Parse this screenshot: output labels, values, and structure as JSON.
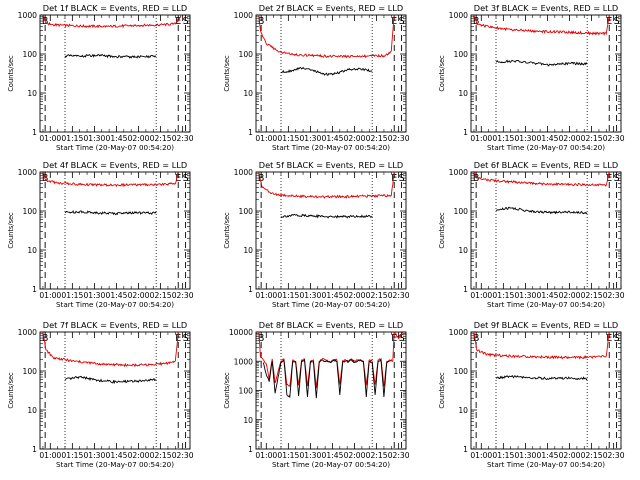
{
  "figure": {
    "xlabel": "Start Time (20-May-07 00:54:20)",
    "ylabel": "Counts/sec",
    "x_ticks": [
      "01:00",
      "01:15",
      "01:30",
      "01:45",
      "02:00",
      "02:15",
      "02:30"
    ],
    "markers": {
      "begin": "B",
      "end": "E",
      "saa": "S"
    },
    "colors": {
      "events": "#000000",
      "lld": "#e00000",
      "frame": "#000000",
      "background": "#ffffff"
    }
  },
  "chart_data": [
    {
      "type": "line",
      "title": "Det 1f BLACK = Events, RED = LLD",
      "x_unit": "minutes",
      "x_range": [
        53,
        155
      ],
      "ylim": [
        1,
        1000
      ],
      "yscale": "log",
      "y_ticks": [
        "1",
        "10",
        "100",
        "1000"
      ],
      "dashed_lines_x": [
        56.5,
        147,
        152
      ],
      "dotted_lines_x": [
        70,
        132
      ],
      "events": {
        "x": [
          70,
          80,
          92,
          105,
          118,
          126,
          132
        ],
        "y": [
          90,
          88,
          92,
          85,
          84,
          86,
          88
        ]
      },
      "lld": {
        "x": [
          55,
          57,
          62,
          80,
          100,
          120,
          135,
          145,
          147,
          149
        ],
        "y": [
          1000,
          620,
          560,
          520,
          510,
          540,
          560,
          590,
          700,
          1000
        ]
      }
    },
    {
      "type": "line",
      "title": "Det 2f BLACK = Events, RED = LLD",
      "x_unit": "minutes",
      "x_range": [
        53,
        155
      ],
      "ylim": [
        1,
        1000
      ],
      "yscale": "log",
      "y_ticks": [
        "1",
        "10",
        "100",
        "1000"
      ],
      "dashed_lines_x": [
        56.5,
        147,
        152
      ],
      "dotted_lines_x": [
        70,
        132
      ],
      "events": {
        "x": [
          70,
          78,
          85,
          92,
          100,
          108,
          116,
          124,
          132
        ],
        "y": [
          34,
          38,
          45,
          38,
          30,
          32,
          40,
          42,
          36
        ]
      },
      "lld": {
        "x": [
          55,
          56,
          60,
          70,
          80,
          95,
          110,
          125,
          140,
          143,
          145,
          147
        ],
        "y": [
          1000,
          400,
          180,
          110,
          95,
          90,
          85,
          88,
          90,
          100,
          120,
          1000
        ]
      }
    },
    {
      "type": "line",
      "title": "Det 3f BLACK = Events, RED = LLD",
      "x_unit": "minutes",
      "x_range": [
        53,
        155
      ],
      "ylim": [
        1,
        1000
      ],
      "yscale": "log",
      "y_ticks": [
        "1",
        "10",
        "100",
        "1000"
      ],
      "dashed_lines_x": [
        56.5,
        147,
        152
      ],
      "dotted_lines_x": [
        70,
        132
      ],
      "events": {
        "x": [
          70,
          82,
          95,
          108,
          120,
          132
        ],
        "y": [
          62,
          66,
          58,
          52,
          58,
          55
        ]
      },
      "lld": {
        "x": [
          55,
          57,
          65,
          80,
          100,
          120,
          135,
          145,
          147
        ],
        "y": [
          1000,
          580,
          500,
          420,
          380,
          360,
          340,
          330,
          1000
        ]
      }
    },
    {
      "type": "line",
      "title": "Det 4f BLACK = Events, RED = LLD",
      "x_unit": "minutes",
      "x_range": [
        53,
        155
      ],
      "ylim": [
        1,
        1000
      ],
      "yscale": "log",
      "y_ticks": [
        "1",
        "10",
        "100",
        "1000"
      ],
      "dashed_lines_x": [
        56.5,
        147,
        152
      ],
      "dotted_lines_x": [
        70,
        132
      ],
      "events": {
        "x": [
          70,
          80,
          92,
          105,
          118,
          132
        ],
        "y": [
          92,
          96,
          90,
          86,
          90,
          88
        ]
      },
      "lld": {
        "x": [
          55,
          57,
          65,
          80,
          100,
          120,
          135,
          145,
          147
        ],
        "y": [
          1000,
          620,
          520,
          480,
          460,
          470,
          480,
          500,
          1000
        ]
      }
    },
    {
      "type": "line",
      "title": "Det 5f BLACK = Events, RED = LLD",
      "x_unit": "minutes",
      "x_range": [
        53,
        155
      ],
      "ylim": [
        1,
        1000
      ],
      "yscale": "log",
      "y_ticks": [
        "1",
        "10",
        "100",
        "1000"
      ],
      "dashed_lines_x": [
        56.5,
        147,
        152
      ],
      "dotted_lines_x": [
        70,
        132
      ],
      "events": {
        "x": [
          70,
          80,
          92,
          105,
          118,
          132
        ],
        "y": [
          72,
          78,
          75,
          70,
          72,
          74
        ]
      },
      "lld": {
        "x": [
          55,
          57,
          65,
          80,
          100,
          120,
          135,
          145,
          147
        ],
        "y": [
          1000,
          420,
          270,
          240,
          230,
          235,
          245,
          250,
          1000
        ]
      }
    },
    {
      "type": "line",
      "title": "Det 6f BLACK = Events, RED = LLD",
      "x_unit": "minutes",
      "x_range": [
        53,
        155
      ],
      "ylim": [
        1,
        1000
      ],
      "yscale": "log",
      "y_ticks": [
        "1",
        "10",
        "100",
        "1000"
      ],
      "dashed_lines_x": [
        56.5,
        147,
        152
      ],
      "dotted_lines_x": [
        70,
        132
      ],
      "events": {
        "x": [
          70,
          80,
          92,
          105,
          118,
          132
        ],
        "y": [
          105,
          120,
          100,
          92,
          95,
          90
        ]
      },
      "lld": {
        "x": [
          55,
          57,
          65,
          80,
          100,
          120,
          135,
          145,
          147
        ],
        "y": [
          1000,
          700,
          620,
          560,
          500,
          480,
          470,
          460,
          1000
        ]
      }
    },
    {
      "type": "line",
      "title": "Det 7f BLACK = Events, RED = LLD",
      "x_unit": "minutes",
      "x_range": [
        53,
        155
      ],
      "ylim": [
        1,
        1000
      ],
      "yscale": "log",
      "y_ticks": [
        "1",
        "10",
        "100",
        "1000"
      ],
      "dashed_lines_x": [
        56.5,
        147,
        152
      ],
      "dotted_lines_x": [
        70,
        132
      ],
      "events": {
        "x": [
          70,
          80,
          92,
          105,
          118,
          132
        ],
        "y": [
          60,
          70,
          58,
          52,
          55,
          60
        ]
      },
      "lld": {
        "x": [
          55,
          57,
          62,
          75,
          95,
          115,
          130,
          140,
          145,
          147
        ],
        "y": [
          1000,
          350,
          220,
          180,
          150,
          140,
          145,
          160,
          180,
          1000
        ]
      }
    },
    {
      "type": "line",
      "title": "Det 8f BLACK = Events, RED = LLD",
      "x_unit": "minutes",
      "x_range": [
        53,
        155
      ],
      "ylim": [
        1,
        10000
      ],
      "yscale": "log",
      "y_ticks": [
        "1",
        "10",
        "100",
        "1000",
        "10000"
      ],
      "dashed_lines_x": [
        56.5,
        147,
        152
      ],
      "dotted_lines_x": [
        70,
        132
      ],
      "events": {
        "x": [
          58,
          60,
          62,
          64,
          66,
          70,
          72,
          74,
          76,
          78,
          80,
          82,
          84,
          86,
          88,
          90,
          92,
          94,
          96,
          98,
          100,
          102,
          104,
          106,
          108,
          110,
          112,
          114,
          116,
          118,
          120,
          122,
          124,
          126,
          128,
          130,
          132,
          134,
          136,
          138,
          140,
          142,
          144
        ],
        "y": [
          900,
          350,
          200,
          1000,
          80,
          950,
          1100,
          70,
          60,
          1000,
          900,
          65,
          1000,
          1100,
          60,
          950,
          1000,
          55,
          900,
          1100,
          1000,
          950,
          900,
          1050,
          1000,
          70,
          980,
          1000,
          950,
          1100,
          900,
          1000,
          1050,
          950,
          60,
          1000,
          900,
          70,
          1000,
          1100,
          60,
          950,
          1000
        ]
      },
      "lld": {
        "x": [
          55,
          56,
          58,
          60,
          62,
          64,
          66,
          70,
          72,
          74,
          76,
          78,
          80,
          82,
          84,
          86,
          88,
          90,
          92,
          94,
          96,
          98,
          100,
          102,
          104,
          106,
          108,
          110,
          112,
          114,
          116,
          118,
          120,
          122,
          124,
          126,
          128,
          130,
          132,
          134,
          136,
          138,
          140,
          142,
          144,
          146,
          147,
          150,
          153
        ],
        "y": [
          10000,
          1400,
          1100,
          800,
          250,
          1200,
          180,
          1000,
          1200,
          160,
          140,
          1100,
          1000,
          150,
          1100,
          1200,
          140,
          1000,
          1100,
          120,
          1000,
          1200,
          1100,
          1000,
          950,
          1150,
          1100,
          160,
          1050,
          1100,
          1000,
          1200,
          1000,
          1100,
          1150,
          1000,
          150,
          1100,
          1000,
          160,
          1100,
          1200,
          140,
          1000,
          1100,
          1000,
          10000,
          6000,
          10000
        ]
      }
    },
    {
      "type": "line",
      "title": "Det 9f BLACK = Events, RED = LLD",
      "x_unit": "minutes",
      "x_range": [
        53,
        155
      ],
      "ylim": [
        1,
        1000
      ],
      "yscale": "log",
      "y_ticks": [
        "1",
        "10",
        "100",
        "1000"
      ],
      "dashed_lines_x": [
        56.5,
        147,
        152
      ],
      "dotted_lines_x": [
        70,
        132
      ],
      "events": {
        "x": [
          70,
          80,
          92,
          105,
          118,
          132
        ],
        "y": [
          66,
          72,
          68,
          64,
          66,
          64
        ]
      },
      "lld": {
        "x": [
          55,
          57,
          65,
          80,
          100,
          120,
          135,
          145,
          147
        ],
        "y": [
          1000,
          340,
          260,
          240,
          230,
          220,
          225,
          240,
          1000
        ]
      }
    }
  ]
}
